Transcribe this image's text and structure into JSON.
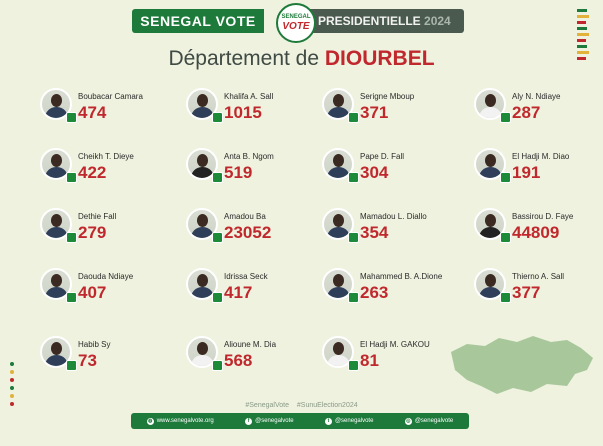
{
  "header": {
    "brand": "SENEGAL VOTE",
    "logo_top": "SENEGAL",
    "logo_bottom": "VOTE",
    "election": "PRESIDENTIELLE",
    "year": "2024"
  },
  "title": {
    "prefix": "Département de",
    "department": "DIOURBEL"
  },
  "candidates": [
    {
      "name": "Boubacar Camara",
      "votes": "474"
    },
    {
      "name": "Khalifa A. Sall",
      "votes": "1015"
    },
    {
      "name": "Serigne Mboup",
      "votes": "371"
    },
    {
      "name": "Aly N. Ndiaye",
      "votes": "287"
    },
    {
      "name": "Cheikh T. Dieye",
      "votes": "422"
    },
    {
      "name": "Anta B. Ngom",
      "votes": "519"
    },
    {
      "name": "Pape D. Fall",
      "votes": "304"
    },
    {
      "name": "El Hadji M. Diao",
      "votes": "191"
    },
    {
      "name": "Dethie Fall",
      "votes": "279"
    },
    {
      "name": "Amadou Ba",
      "votes": "23052"
    },
    {
      "name": "Mamadou L. Diallo",
      "votes": "354"
    },
    {
      "name": "Bassirou D. Faye",
      "votes": "44809"
    },
    {
      "name": "Daouda Ndiaye",
      "votes": "407"
    },
    {
      "name": "Idrissa Seck",
      "votes": "417"
    },
    {
      "name": "Mahammed B. A.Dione",
      "votes": "263"
    },
    {
      "name": "Thierno A. Sall",
      "votes": "377"
    },
    {
      "name": "Habib Sy",
      "votes": "73"
    },
    {
      "name": "Alioune M. Dia",
      "votes": "568"
    },
    {
      "name": "El Hadji M. GAKOU",
      "votes": "81"
    }
  ],
  "hashtags": "#SenegalVote   #SunuElection2024",
  "footer": {
    "website": "www.senegalvote.org",
    "facebook": "@senegalvote",
    "twitter": "@senegalvote",
    "instagram": "@senegalvote"
  },
  "colors": {
    "green": "#1d7a3a",
    "red": "#c0282d",
    "yellow": "#e2b23a",
    "background": "#eef2df"
  }
}
